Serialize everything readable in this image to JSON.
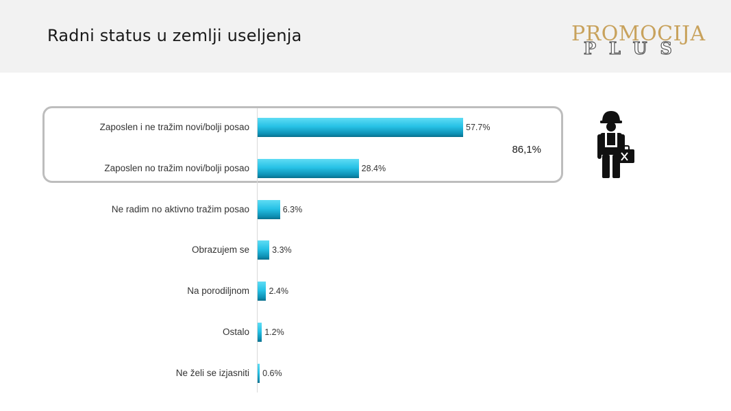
{
  "header": {
    "title": "Radni status u zemlji useljenja",
    "logo_main": "PROMOCIJA",
    "logo_sub": "PLUS"
  },
  "group": {
    "total_label": "86,1%"
  },
  "icons": {
    "worker": "worker-with-toolbox-icon"
  },
  "chart_data": {
    "type": "bar",
    "orientation": "horizontal",
    "title": "",
    "xlabel": "",
    "ylabel": "",
    "xlim": [
      0,
      100
    ],
    "grid": false,
    "categories": [
      "Zaposlen i ne tražim novi/bolji posao",
      "Zaposlen no tražim novi/bolji posao",
      "Ne radim no aktivno tražim posao",
      "Obrazujem se",
      "Na porodiljnom",
      "Ostalo",
      "Ne želi se izjasniti"
    ],
    "values": [
      57.7,
      28.4,
      6.3,
      3.3,
      2.4,
      1.2,
      0.6
    ],
    "value_labels": [
      "57.7%",
      "28.4%",
      "6.3%",
      "3.3%",
      "2.4%",
      "1.2%",
      "0.6%"
    ],
    "bar_color": "#27c2e6"
  }
}
